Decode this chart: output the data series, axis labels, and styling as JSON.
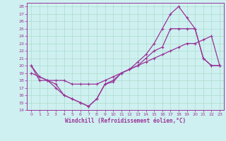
{
  "xlabel": "Windchill (Refroidissement éolien,°C)",
  "background_color": "#cff0f0",
  "grid_color": "#aaddcc",
  "line_color": "#993399",
  "xlim": [
    -0.5,
    23.5
  ],
  "ylim": [
    14,
    28.5
  ],
  "xticks": [
    0,
    1,
    2,
    3,
    4,
    5,
    6,
    7,
    8,
    9,
    10,
    11,
    12,
    13,
    14,
    15,
    16,
    17,
    18,
    19,
    20,
    21,
    22,
    23
  ],
  "yticks": [
    14,
    15,
    16,
    17,
    18,
    19,
    20,
    21,
    22,
    23,
    24,
    25,
    26,
    27,
    28
  ],
  "line1_x": [
    0,
    1,
    2,
    3,
    4,
    5,
    6,
    7,
    8,
    9,
    10,
    11,
    12,
    13,
    14,
    15,
    16,
    17,
    18,
    19,
    20,
    21,
    22,
    23
  ],
  "line1_y": [
    20,
    18,
    18,
    17,
    16,
    15.5,
    15,
    14.5,
    15.5,
    17.5,
    17.8,
    19,
    19.5,
    20,
    21,
    22,
    22.5,
    25,
    25,
    25,
    25,
    21,
    20,
    20
  ],
  "line2_x": [
    0,
    1,
    2,
    3,
    4,
    5,
    6,
    7,
    8,
    9,
    10,
    11,
    12,
    13,
    14,
    15,
    16,
    17,
    18,
    19,
    20,
    21,
    22,
    23
  ],
  "line2_y": [
    20,
    18.5,
    18,
    17.5,
    16,
    15.5,
    15,
    14.5,
    15.5,
    17.5,
    18,
    19,
    19.5,
    20.5,
    21.5,
    23,
    25,
    27,
    28,
    26.5,
    25,
    21,
    20,
    20
  ],
  "line3_x": [
    0,
    1,
    2,
    3,
    4,
    5,
    6,
    7,
    8,
    9,
    10,
    11,
    12,
    13,
    14,
    15,
    16,
    17,
    18,
    19,
    20,
    21,
    22,
    23
  ],
  "line3_y": [
    19,
    18.5,
    18,
    18,
    18,
    17.5,
    17.5,
    17.5,
    17.5,
    18,
    18.5,
    19,
    19.5,
    20,
    20.5,
    21,
    21.5,
    22,
    22.5,
    23,
    23,
    23.5,
    24,
    20
  ]
}
